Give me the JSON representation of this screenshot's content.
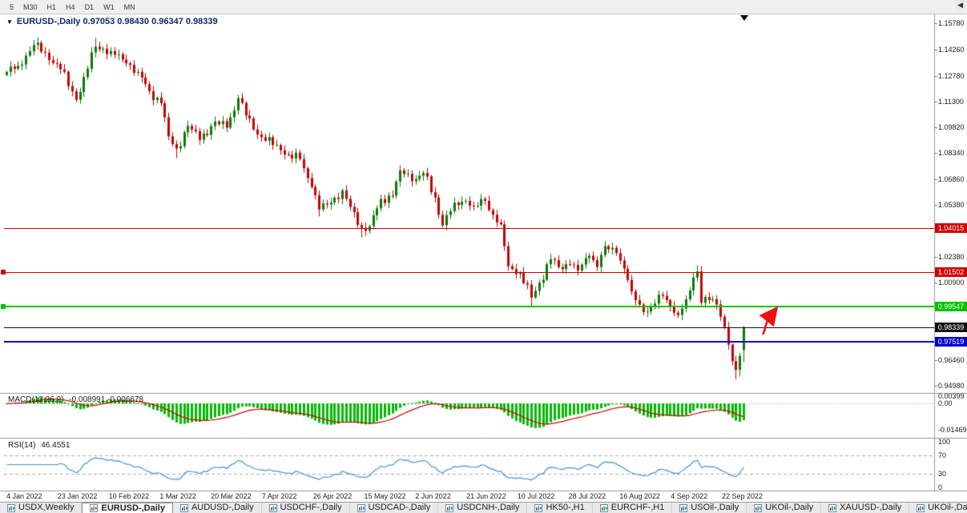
{
  "toolbar": {
    "timeframes": [
      "5",
      "M30",
      "H1",
      "H4",
      "D1",
      "W1",
      "MN"
    ]
  },
  "chart_header": {
    "collapse_icon": "▼",
    "title": "EURUSD-,Daily 0.97053 0.98430 0.96347 0.98339"
  },
  "price_axis": {
    "labels": [
      "1.15780",
      "1.14260",
      "1.12780",
      "1.11300",
      "1.09820",
      "1.08340",
      "1.06860",
      "1.05380",
      "1.02380",
      "1.00900",
      "0.96460",
      "0.94980"
    ],
    "badges": [
      {
        "text": "1.04015",
        "bg": "#d10000",
        "fg": "#ffffff"
      },
      {
        "text": "1.01502",
        "bg": "#d10000",
        "fg": "#ffffff"
      },
      {
        "text": "0.99547",
        "bg": "#00c400",
        "fg": "#ffffff"
      },
      {
        "text": "0.98339",
        "bg": "#111111",
        "fg": "#ffffff"
      },
      {
        "text": "0.97519",
        "bg": "#0000cc",
        "fg": "#ffffff"
      }
    ]
  },
  "hlines": [
    {
      "price": 1.04015,
      "color": "#d10000",
      "width": 1,
      "handle": false
    },
    {
      "price": 1.01502,
      "color": "#d10000",
      "width": 1,
      "handle": true
    },
    {
      "price": 0.99547,
      "color": "#00c400",
      "width": 2,
      "handle": true
    },
    {
      "price": 0.98339,
      "color": "#111111",
      "width": 1,
      "handle": false
    },
    {
      "price": 0.97519,
      "color": "#0000cc",
      "width": 2,
      "handle": false
    }
  ],
  "macd_panel": {
    "label": "MACD(12,26,9)",
    "values": "-0.008991 -0.006678",
    "axis_labels": [
      {
        "text": "0.00399",
        "v": 0.00399
      },
      {
        "text": "0.00",
        "v": 0
      },
      {
        "text": "-0.01469",
        "v": -0.01469
      }
    ]
  },
  "rsi_panel": {
    "label": "RSI(14)",
    "value": "46.4551",
    "axis_labels": [
      {
        "text": "100",
        "v": 100
      },
      {
        "text": "70",
        "v": 70
      },
      {
        "text": "30",
        "v": 30
      },
      {
        "text": "0",
        "v": 0
      }
    ],
    "levels": [
      70,
      30
    ]
  },
  "date_axis": [
    "4 Jan 2022",
    "23 Jan 2022",
    "10 Feb 2022",
    "1 Mar 2022",
    "20 Mar 2022",
    "7 Apr 2022",
    "26 Apr 2022",
    "15 May 2022",
    "2 Jun 2022",
    "21 Jun 2022",
    "10 Jul 2022",
    "28 Jul 2022",
    "16 Aug 2022",
    "4 Sep 2022",
    "22 Sep 2022"
  ],
  "tabs": {
    "items": [
      {
        "label": "USDX,Weekly",
        "active": false
      },
      {
        "label": "EURUSD-,Daily",
        "active": true
      },
      {
        "label": "AUDUSD-,Daily",
        "active": false
      },
      {
        "label": "USDCHF-,Daily",
        "active": false
      },
      {
        "label": "USDCAD-,Daily",
        "active": false
      },
      {
        "label": "USDCNH-,Daily",
        "active": false
      },
      {
        "label": "HK50-,H1",
        "active": false
      },
      {
        "label": "EURCHF-,H1",
        "active": false
      },
      {
        "label": "USOil-,Daily",
        "active": false
      },
      {
        "label": "UKOil-,Daily",
        "active": false
      },
      {
        "label": "XAUUSD-,Daily",
        "active": false
      },
      {
        "label": "UKOil-,Da",
        "active": false
      }
    ],
    "scroll_icon": "◀"
  },
  "colors": {
    "bull": "#0a7a0a",
    "bear": "#c40000",
    "macd_hist": "#00bb00",
    "macd_signal": "#d40000",
    "rsi_line": "#3f92d2",
    "panel_border": "#999999",
    "level_dash": "#aaaaaa",
    "arrow": "#ee1111"
  },
  "chart_data": {
    "type": "candlestick",
    "symbol": "EURUSD-,Daily",
    "visible_ohlc": {
      "open": 0.97053,
      "high": 0.9843,
      "low": 0.96347,
      "close": 0.98339
    },
    "y_range": [
      0.9462,
      1.163
    ],
    "bars": 192,
    "x_labels": [
      "4 Jan 2022",
      "23 Jan 2022",
      "10 Feb 2022",
      "1 Mar 2022",
      "20 Mar 2022",
      "7 Apr 2022",
      "26 Apr 2022",
      "15 May 2022",
      "2 Jun 2022",
      "21 Jun 2022",
      "10 Jul 2022",
      "28 Jul 2022",
      "16 Aug 2022",
      "4 Sep 2022",
      "22 Sep 2022"
    ],
    "close_anchors": [
      [
        0,
        1.13
      ],
      [
        3,
        1.1335
      ],
      [
        7,
        1.1455
      ],
      [
        10,
        1.141
      ],
      [
        14,
        1.1315
      ],
      [
        18,
        1.114
      ],
      [
        20,
        1.127
      ],
      [
        23,
        1.1445
      ],
      [
        27,
        1.142
      ],
      [
        31,
        1.135
      ],
      [
        34,
        1.13
      ],
      [
        37,
        1.119
      ],
      [
        40,
        1.112
      ],
      [
        42,
        1.093
      ],
      [
        44,
        1.086
      ],
      [
        47,
        1.099
      ],
      [
        50,
        1.091
      ],
      [
        54,
        1.1015
      ],
      [
        57,
        1.098
      ],
      [
        60,
        1.115
      ],
      [
        62,
        1.105
      ],
      [
        64,
        1.097
      ],
      [
        67,
        1.0905
      ],
      [
        70,
        1.088
      ],
      [
        73,
        1.0825
      ],
      [
        76,
        1.08
      ],
      [
        79,
        1.064
      ],
      [
        81,
        1.051
      ],
      [
        84,
        1.055
      ],
      [
        87,
        1.062
      ],
      [
        89,
        1.0525
      ],
      [
        92,
        1.0405
      ],
      [
        94,
        1.0415
      ],
      [
        97,
        1.057
      ],
      [
        100,
        1.059
      ],
      [
        102,
        1.0735
      ],
      [
        104,
        1.0715
      ],
      [
        106,
        1.0685
      ],
      [
        108,
        1.072
      ],
      [
        111,
        1.058
      ],
      [
        113,
        1.042
      ],
      [
        116,
        1.055
      ],
      [
        119,
        1.056
      ],
      [
        121,
        1.053
      ],
      [
        124,
        1.056
      ],
      [
        126,
        1.048
      ],
      [
        128,
        1.0425
      ],
      [
        130,
        1.0185
      ],
      [
        133,
        1.015
      ],
      [
        136,
        1.0005
      ],
      [
        138,
        1.009
      ],
      [
        141,
        1.0225
      ],
      [
        143,
        1.018
      ],
      [
        146,
        1.0195
      ],
      [
        148,
        1.016
      ],
      [
        151,
        1.0245
      ],
      [
        153,
        1.018
      ],
      [
        155,
        1.03
      ],
      [
        158,
        1.026
      ],
      [
        160,
        1.017
      ],
      [
        162,
        1.004
      ],
      [
        164,
        0.9965
      ],
      [
        166,
        0.9925
      ],
      [
        168,
        0.997
      ],
      [
        170,
        1.0015
      ],
      [
        172,
        0.9955
      ],
      [
        174,
        0.9905
      ],
      [
        176,
        0.9995
      ],
      [
        178,
        1.012
      ],
      [
        179,
        1.0155
      ],
      [
        180,
        0.9975
      ],
      [
        182,
        0.999
      ],
      [
        184,
        0.9965
      ],
      [
        185,
        0.9895
      ],
      [
        186,
        0.9835
      ],
      [
        187,
        0.9735
      ],
      [
        188,
        0.964
      ],
      [
        189,
        0.959
      ],
      [
        190,
        0.967
      ],
      [
        191,
        0.98339
      ]
    ],
    "wick_overrides": {
      "7": {
        "high": 1.1483
      },
      "23": {
        "high": 1.1495
      },
      "44": {
        "low": 1.0806
      },
      "81": {
        "low": 1.047
      },
      "92": {
        "low": 1.035
      },
      "136": {
        "low": 0.9952
      },
      "179": {
        "high": 1.019
      },
      "189": {
        "low": 0.9535
      },
      "190": {
        "low": 0.9551
      }
    },
    "indicators": {
      "macd": {
        "fast": 12,
        "slow": 26,
        "signal": 9,
        "current_values": "-0.008991 -0.006678",
        "scale": [
          0.00399,
          0,
          -0.01469
        ]
      },
      "rsi": {
        "period": 14,
        "current_value": 46.4551,
        "levels": [
          70,
          30
        ],
        "scale": [
          100,
          70,
          30,
          0
        ]
      }
    },
    "horizontal_levels": [
      1.04015,
      1.01502,
      0.99547,
      0.98339,
      0.97519
    ]
  }
}
